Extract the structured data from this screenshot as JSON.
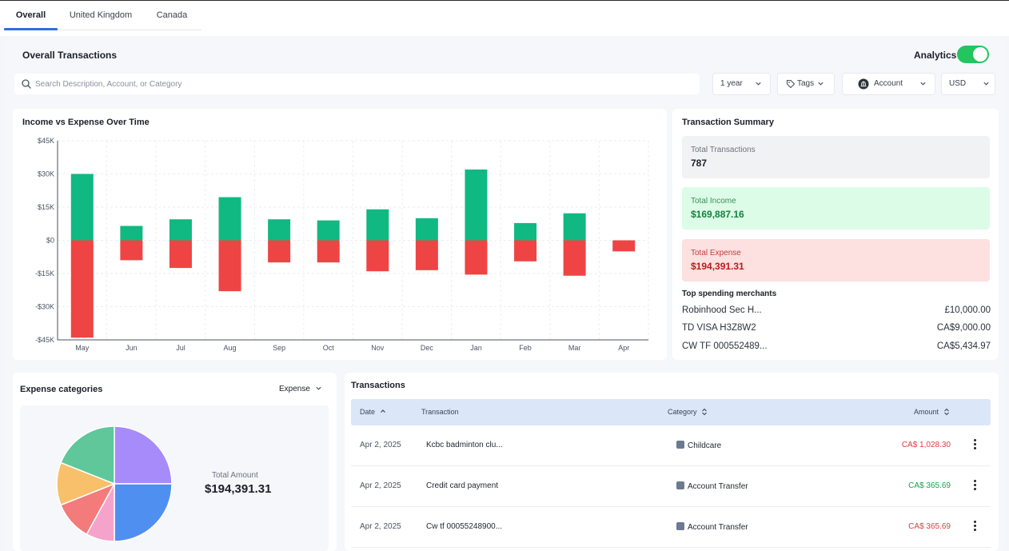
{
  "tabs": [
    {
      "label": "Overall",
      "active": true
    },
    {
      "label": "United Kingdom",
      "active": false
    },
    {
      "label": "Canada",
      "active": false
    }
  ],
  "header": {
    "title": "Overall Transactions",
    "analytics_label": "Analytics",
    "analytics_on": true
  },
  "search": {
    "placeholder": "Search Description, Account, or Category",
    "value": ""
  },
  "filters": {
    "period": "1 year",
    "tags": "Tags",
    "account": "Account",
    "currency": "USD"
  },
  "icons": {
    "search": "search-icon",
    "tag": "tag-icon",
    "bank": "bank-icon",
    "chevron": "chevron-down-icon",
    "sort": "sort-icon",
    "menu": "kebab-menu-icon"
  },
  "colors": {
    "income": "#10b981",
    "expense": "#ef4444",
    "accent": "#2f6fde",
    "toggle_on": "#22c55e"
  },
  "chart_data": {
    "type": "bar",
    "title": "Income vs Expense Over Time",
    "categories": [
      "May",
      "Jun",
      "Jul",
      "Aug",
      "Sep",
      "Oct",
      "Nov",
      "Dec",
      "Jan",
      "Feb",
      "Mar",
      "Apr"
    ],
    "series": [
      {
        "values": [
          30000,
          6500,
          9500,
          19500,
          9500,
          9000,
          14000,
          10000,
          32000,
          7800,
          12200,
          0
        ]
      },
      {
        "values": [
          -44000,
          -9000,
          -12500,
          -23000,
          -10000,
          -10000,
          -14000,
          -13500,
          -15500,
          -9500,
          -16000,
          -5000
        ]
      }
    ],
    "yticks": [
      "$45K",
      "$30K",
      "$15K",
      "$0",
      "-$15K",
      "-$30K",
      "-$45K"
    ],
    "ylim": [
      -45000,
      45000
    ],
    "grid": true,
    "stacked": true
  },
  "summary": {
    "title": "Transaction Summary",
    "total_transactions_label": "Total Transactions",
    "total_transactions": "787",
    "total_income_label": "Total Income",
    "total_income": "$169,887.16",
    "total_expense_label": "Total Expense",
    "total_expense": "$194,391.31",
    "merchants_title": "Top spending merchants",
    "merchants": [
      {
        "name": "Robinhood Sec H...",
        "amount": "£10,000.00"
      },
      {
        "name": "TD VISA H3Z8W2",
        "amount": "CA$9,000.00"
      },
      {
        "name": "CW TF 000552489...",
        "amount": "CA$5,434.97"
      }
    ]
  },
  "expense_categories": {
    "title": "Expense categories",
    "dropdown": "Expense",
    "total_label": "Total Amount",
    "total": "$194,391.31",
    "pie": {
      "type": "pie",
      "slices": [
        {
          "value": 25,
          "color": "#a78bfa"
        },
        {
          "value": 25,
          "color": "#4f8ff0"
        },
        {
          "value": 8,
          "color": "#f5a3cb"
        },
        {
          "value": 11,
          "color": "#f37b7b"
        },
        {
          "value": 12,
          "color": "#f8c06b"
        },
        {
          "value": 19,
          "color": "#5fc79a"
        }
      ]
    }
  },
  "transactions": {
    "title": "Transactions",
    "columns": {
      "date": "Date",
      "transaction": "Transaction",
      "category": "Category",
      "amount": "Amount"
    },
    "rows": [
      {
        "date": "Apr 2, 2025",
        "desc": "Kcbc badminton clu...",
        "category": "Childcare",
        "amount": "CA$ 1,028.30",
        "color": "#e23b3b"
      },
      {
        "date": "Apr 2, 2025",
        "desc": "Credit card payment",
        "category": "Account Transfer",
        "amount": "CA$ 365.69",
        "color": "#16a34a"
      },
      {
        "date": "Apr 2, 2025",
        "desc": "Cw tf 00055248900...",
        "category": "Account Transfer",
        "amount": "CA$ 365.69",
        "color": "#e23b3b"
      }
    ]
  }
}
